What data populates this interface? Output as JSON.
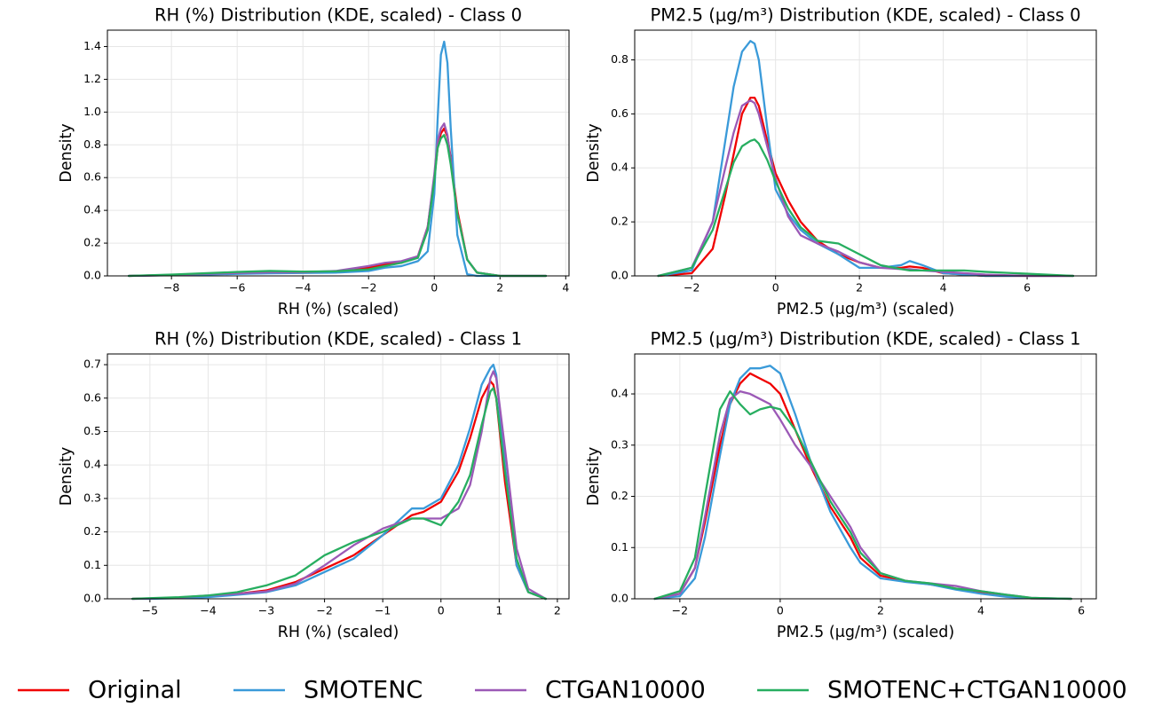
{
  "chart_data": [
    {
      "type": "line",
      "title": "RH (%) Distribution (KDE, scaled) - Class 0",
      "x_label": "RH (%) (scaled)",
      "y_label": "Density",
      "grid": true,
      "x": [
        -9.3,
        -8,
        -7,
        -6,
        -5,
        -4,
        -3,
        -2,
        -1.5,
        -1,
        -0.5,
        -0.2,
        0,
        0.1,
        0.2,
        0.3,
        0.4,
        0.5,
        0.7,
        1,
        1.3,
        2,
        3,
        3.4
      ],
      "xlim": [
        -9.95,
        4.1
      ],
      "ylim": [
        0,
        1.5
      ],
      "xticks": [
        {
          "value": -8,
          "label": "−8"
        },
        {
          "value": -6,
          "label": "−6"
        },
        {
          "value": -4,
          "label": "−4"
        },
        {
          "value": -2,
          "label": "−2"
        },
        0,
        2,
        4
      ],
      "yticks": [
        {
          "value": 0,
          "label": "0.0"
        },
        0.2,
        0.4,
        0.6,
        0.8,
        {
          "value": 1,
          "label": "1.0"
        },
        1.2,
        1.4
      ],
      "series": [
        {
          "name": "Original",
          "color": "#f00000",
          "values": [
            0,
            0.005,
            0.01,
            0.015,
            0.02,
            0.02,
            0.025,
            0.05,
            0.07,
            0.08,
            0.12,
            0.3,
            0.6,
            0.78,
            0.87,
            0.9,
            0.85,
            0.72,
            0.4,
            0.1,
            0.02,
            0,
            0,
            0
          ]
        },
        {
          "name": "SMOTENC",
          "color": "#3a9ad9",
          "values": [
            0,
            0.004,
            0.008,
            0.012,
            0.016,
            0.018,
            0.02,
            0.03,
            0.05,
            0.06,
            0.09,
            0.15,
            0.5,
            0.95,
            1.35,
            1.43,
            1.3,
            0.9,
            0.25,
            0.01,
            0,
            0,
            0,
            0
          ]
        },
        {
          "name": "CTGAN10000",
          "color": "#9b59b6",
          "values": [
            0,
            0.006,
            0.012,
            0.018,
            0.022,
            0.022,
            0.03,
            0.06,
            0.08,
            0.09,
            0.12,
            0.3,
            0.62,
            0.82,
            0.9,
            0.93,
            0.86,
            0.7,
            0.38,
            0.1,
            0.02,
            0,
            0,
            0
          ]
        },
        {
          "name": "SMOTENC+CTGAN10000",
          "color": "#27ae60",
          "values": [
            0,
            0.008,
            0.016,
            0.024,
            0.03,
            0.026,
            0.028,
            0.04,
            0.06,
            0.08,
            0.11,
            0.28,
            0.58,
            0.78,
            0.84,
            0.86,
            0.8,
            0.68,
            0.38,
            0.1,
            0.02,
            0,
            0,
            0
          ]
        }
      ]
    },
    {
      "type": "line",
      "title": "PM2.5 (μg/m³) Distribution (KDE, scaled) - Class 0",
      "x_label": "PM2.5 (μg/m³) (scaled)",
      "y_label": "Density",
      "grid": true,
      "x": [
        -2.8,
        -2,
        -1.5,
        -1.2,
        -1,
        -0.8,
        -0.6,
        -0.5,
        -0.4,
        -0.2,
        0,
        0.3,
        0.6,
        1,
        1.5,
        2,
        2.5,
        3,
        3.2,
        3.5,
        4,
        4.5,
        5,
        6,
        7.1
      ],
      "xlim": [
        -3.36,
        7.65
      ],
      "ylim": [
        0,
        0.91
      ],
      "xticks": [
        {
          "value": -2,
          "label": "−2"
        },
        0,
        2,
        4,
        6
      ],
      "yticks": [
        {
          "value": 0,
          "label": "0.0"
        },
        0.2,
        0.4,
        0.6,
        0.8
      ],
      "series": [
        {
          "name": "Original",
          "color": "#f00000",
          "values": [
            0,
            0.01,
            0.1,
            0.3,
            0.45,
            0.6,
            0.66,
            0.66,
            0.63,
            0.5,
            0.38,
            0.28,
            0.2,
            0.13,
            0.08,
            0.05,
            0.03,
            0.03,
            0.035,
            0.03,
            0.01,
            0.005,
            0,
            0,
            0
          ]
        },
        {
          "name": "SMOTENC",
          "color": "#3a9ad9",
          "values": [
            0,
            0.02,
            0.2,
            0.5,
            0.7,
            0.83,
            0.87,
            0.86,
            0.8,
            0.55,
            0.32,
            0.23,
            0.17,
            0.12,
            0.08,
            0.03,
            0.03,
            0.04,
            0.055,
            0.04,
            0.01,
            0.005,
            0,
            0,
            0
          ]
        },
        {
          "name": "CTGAN10000",
          "color": "#9b59b6",
          "values": [
            0,
            0.03,
            0.2,
            0.4,
            0.53,
            0.63,
            0.65,
            0.64,
            0.6,
            0.48,
            0.36,
            0.22,
            0.15,
            0.12,
            0.09,
            0.05,
            0.03,
            0.025,
            0.025,
            0.02,
            0.015,
            0.01,
            0.005,
            0,
            0
          ]
        },
        {
          "name": "SMOTENC+CTGAN10000",
          "color": "#27ae60",
          "values": [
            0,
            0.03,
            0.17,
            0.32,
            0.42,
            0.48,
            0.5,
            0.505,
            0.49,
            0.43,
            0.35,
            0.25,
            0.18,
            0.13,
            0.12,
            0.08,
            0.04,
            0.025,
            0.02,
            0.02,
            0.02,
            0.02,
            0.015,
            0.008,
            0
          ]
        }
      ]
    },
    {
      "type": "line",
      "title": "RH (%) Distribution (KDE, scaled) - Class 1",
      "x_label": "RH (%) (scaled)",
      "y_label": "Density",
      "grid": true,
      "x": [
        -5.3,
        -5,
        -4.5,
        -4,
        -3.5,
        -3,
        -2.5,
        -2,
        -1.5,
        -1,
        -0.5,
        -0.3,
        0,
        0.3,
        0.5,
        0.7,
        0.85,
        0.9,
        0.95,
        1.1,
        1.3,
        1.5,
        1.8
      ],
      "xlim": [
        -5.73,
        2.2
      ],
      "ylim": [
        0,
        0.732
      ],
      "xticks": [
        {
          "value": -5,
          "label": "−5"
        },
        {
          "value": -4,
          "label": "−4"
        },
        {
          "value": -3,
          "label": "−3"
        },
        {
          "value": -2,
          "label": "−2"
        },
        {
          "value": -1,
          "label": "−1"
        },
        0,
        1,
        2
      ],
      "yticks": [
        {
          "value": 0,
          "label": "0.0"
        },
        0.1,
        0.2,
        0.3,
        0.4,
        0.5,
        0.6,
        0.7
      ],
      "series": [
        {
          "name": "Original",
          "color": "#f00000",
          "values": [
            0,
            0.001,
            0.003,
            0.008,
            0.015,
            0.025,
            0.05,
            0.09,
            0.13,
            0.19,
            0.25,
            0.26,
            0.29,
            0.38,
            0.48,
            0.6,
            0.65,
            0.64,
            0.6,
            0.35,
            0.1,
            0.02,
            0
          ]
        },
        {
          "name": "SMOTENC",
          "color": "#3a9ad9",
          "values": [
            0,
            0,
            0.002,
            0.005,
            0.012,
            0.02,
            0.04,
            0.08,
            0.12,
            0.19,
            0.27,
            0.27,
            0.3,
            0.4,
            0.51,
            0.64,
            0.69,
            0.7,
            0.67,
            0.4,
            0.1,
            0.02,
            0
          ]
        },
        {
          "name": "CTGAN10000",
          "color": "#9b59b6",
          "values": [
            0,
            0.001,
            0.004,
            0.01,
            0.015,
            0.022,
            0.045,
            0.1,
            0.16,
            0.21,
            0.24,
            0.24,
            0.24,
            0.27,
            0.34,
            0.5,
            0.66,
            0.68,
            0.66,
            0.45,
            0.15,
            0.03,
            0
          ]
        },
        {
          "name": "SMOTENC+CTGAN10000",
          "color": "#27ae60",
          "values": [
            0,
            0.002,
            0.005,
            0.01,
            0.02,
            0.04,
            0.07,
            0.13,
            0.17,
            0.2,
            0.24,
            0.24,
            0.22,
            0.29,
            0.37,
            0.52,
            0.62,
            0.63,
            0.6,
            0.38,
            0.12,
            0.02,
            0
          ]
        }
      ]
    },
    {
      "type": "line",
      "title": "PM2.5 (μg/m³) Distribution (KDE, scaled) - Class 1",
      "x_label": "PM2.5 (μg/m³) (scaled)",
      "y_label": "Density",
      "grid": true,
      "x": [
        -2.5,
        -2,
        -1.7,
        -1.5,
        -1.2,
        -1,
        -0.8,
        -0.6,
        -0.4,
        -0.2,
        0,
        0.3,
        0.6,
        1,
        1.4,
        1.6,
        2,
        2.5,
        3,
        3.5,
        4,
        4.5,
        5,
        5.8
      ],
      "xlim": [
        -2.9,
        6.3
      ],
      "ylim": [
        0,
        0.478
      ],
      "xticks": [
        {
          "value": -2,
          "label": "−2"
        },
        0,
        2,
        4,
        6
      ],
      "yticks": [
        {
          "value": 0,
          "label": "0.0"
        },
        0.1,
        0.2,
        0.3,
        0.4
      ],
      "series": [
        {
          "name": "Original",
          "color": "#f00000",
          "values": [
            0,
            0.01,
            0.06,
            0.15,
            0.3,
            0.38,
            0.42,
            0.44,
            0.43,
            0.42,
            0.4,
            0.33,
            0.26,
            0.18,
            0.12,
            0.08,
            0.045,
            0.035,
            0.028,
            0.02,
            0.012,
            0.005,
            0.001,
            0
          ]
        },
        {
          "name": "SMOTENC",
          "color": "#3a9ad9",
          "values": [
            0,
            0.005,
            0.04,
            0.12,
            0.28,
            0.38,
            0.43,
            0.45,
            0.45,
            0.455,
            0.44,
            0.36,
            0.27,
            0.17,
            0.1,
            0.07,
            0.04,
            0.033,
            0.028,
            0.018,
            0.01,
            0.004,
            0.001,
            0
          ]
        },
        {
          "name": "CTGAN10000",
          "color": "#9b59b6",
          "values": [
            0,
            0.01,
            0.06,
            0.16,
            0.32,
            0.39,
            0.405,
            0.4,
            0.39,
            0.38,
            0.35,
            0.3,
            0.26,
            0.2,
            0.14,
            0.1,
            0.05,
            0.035,
            0.03,
            0.025,
            0.015,
            0.008,
            0.002,
            0
          ]
        },
        {
          "name": "SMOTENC+CTGAN10000",
          "color": "#27ae60",
          "values": [
            0,
            0.015,
            0.08,
            0.2,
            0.37,
            0.405,
            0.38,
            0.36,
            0.37,
            0.375,
            0.37,
            0.33,
            0.27,
            0.19,
            0.13,
            0.09,
            0.05,
            0.035,
            0.03,
            0.02,
            0.015,
            0.008,
            0.002,
            0
          ]
        }
      ]
    }
  ]
}
